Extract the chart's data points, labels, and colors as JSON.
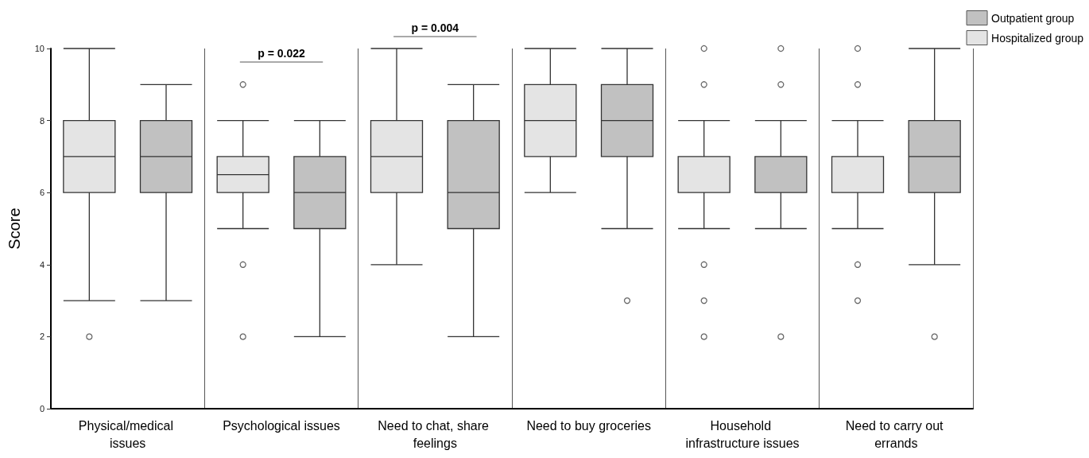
{
  "chart_data": {
    "type": "box",
    "ylabel": "Score",
    "categories": [
      "Physical/medical issues",
      "Psychological issues",
      "Need to chat, share feelings",
      "Need to buy groceries",
      "Household infrastructure issues",
      "Need to carry out errands"
    ],
    "series": [
      {
        "name": "Hospitalized group",
        "color": "#e4e4e4",
        "boxes": [
          {
            "low": 3,
            "q1": 6,
            "median": 7,
            "q3": 8,
            "high": 10,
            "outliers": [
              2
            ]
          },
          {
            "low": 5,
            "q1": 6,
            "median": 6.5,
            "q3": 7,
            "high": 8,
            "outliers": [
              9,
              4,
              2
            ]
          },
          {
            "low": 4,
            "q1": 6,
            "median": 7,
            "q3": 8,
            "high": 10
          },
          {
            "low": 6,
            "q1": 7,
            "median": 8,
            "q3": 9,
            "high": 10
          },
          {
            "low": 5,
            "q1": 6,
            "median": 7,
            "q3": 7,
            "high": 8,
            "outliers": [
              10,
              9,
              4,
              3,
              2
            ]
          },
          {
            "low": 5,
            "q1": 6,
            "median": 7,
            "q3": 7,
            "high": 8,
            "outliers": [
              10,
              9,
              4,
              3
            ]
          }
        ]
      },
      {
        "name": "Outpatient group",
        "color": "#c1c1c1",
        "boxes": [
          {
            "low": 3,
            "q1": 6,
            "median": 7,
            "q3": 8,
            "high": 9
          },
          {
            "low": 2,
            "q1": 5,
            "median": 6,
            "q3": 7,
            "high": 8
          },
          {
            "low": 2,
            "q1": 5,
            "median": 6,
            "q3": 8,
            "high": 9
          },
          {
            "low": 5,
            "q1": 7,
            "median": 8,
            "q3": 9,
            "high": 10,
            "outliers": [
              3
            ]
          },
          {
            "low": 5,
            "q1": 6,
            "median": 6,
            "q3": 7,
            "high": 8,
            "outliers": [
              10,
              9,
              2
            ]
          },
          {
            "low": 4,
            "q1": 6,
            "median": 7,
            "q3": 8,
            "high": 10,
            "outliers": [
              2
            ]
          }
        ]
      }
    ],
    "ylim": [
      0,
      10
    ],
    "yticks": [
      0,
      2,
      4,
      6,
      8,
      10
    ],
    "grid": "x",
    "legend": "top right",
    "annotations": [
      "p = 0.022",
      "p = 0.004"
    ]
  }
}
